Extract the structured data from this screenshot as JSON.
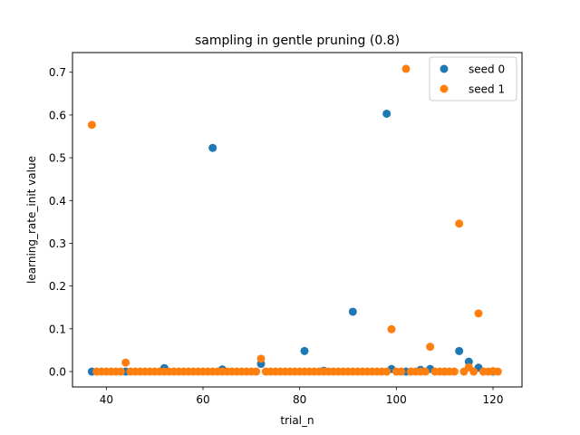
{
  "chart_data": {
    "type": "scatter",
    "title": "sampling in gentle pruning (0.8)",
    "xlabel": "trial_n",
    "ylabel": "learning_rate_init value",
    "xlim": [
      33,
      126
    ],
    "ylim": [
      -0.036,
      0.746
    ],
    "xticks": [
      40,
      60,
      80,
      100,
      120
    ],
    "yticks": [
      0.0,
      0.1,
      0.2,
      0.3,
      0.4,
      0.5,
      0.6,
      0.7
    ],
    "yticklabels": [
      "0.0",
      "0.1",
      "0.2",
      "0.3",
      "0.4",
      "0.5",
      "0.6",
      "0.7"
    ],
    "grid": false,
    "legend_position": "top-right",
    "series": [
      {
        "name": "seed 0",
        "color": "#1f77b4",
        "points": [
          [
            37,
            0.0
          ],
          [
            44,
            0.0
          ],
          [
            52,
            0.008
          ],
          [
            62,
            0.523
          ],
          [
            64,
            0.005
          ],
          [
            72,
            0.018
          ],
          [
            81,
            0.048
          ],
          [
            85,
            0.002
          ],
          [
            91,
            0.14
          ],
          [
            98,
            0.603
          ],
          [
            99,
            0.006
          ],
          [
            102,
            0.0
          ],
          [
            105,
            0.004
          ],
          [
            107,
            0.006
          ],
          [
            110,
            0.0
          ],
          [
            113,
            0.048
          ],
          [
            115,
            0.023
          ],
          [
            117,
            0.009
          ],
          [
            120,
            0.0
          ]
        ]
      },
      {
        "name": "seed 1",
        "color": "#ff7f0e",
        "points": [
          [
            37,
            0.577
          ],
          [
            38,
            0.0
          ],
          [
            39,
            0.0
          ],
          [
            40,
            0.0
          ],
          [
            41,
            0.0
          ],
          [
            42,
            0.0
          ],
          [
            43,
            0.0
          ],
          [
            44,
            0.021
          ],
          [
            45,
            0.0
          ],
          [
            46,
            0.0
          ],
          [
            47,
            0.0
          ],
          [
            48,
            0.0
          ],
          [
            49,
            0.0
          ],
          [
            50,
            0.0
          ],
          [
            51,
            0.0
          ],
          [
            52,
            0.0
          ],
          [
            53,
            0.0
          ],
          [
            54,
            0.0
          ],
          [
            55,
            0.0
          ],
          [
            56,
            0.0
          ],
          [
            57,
            0.0
          ],
          [
            58,
            0.0
          ],
          [
            59,
            0.0
          ],
          [
            60,
            0.0
          ],
          [
            61,
            0.0
          ],
          [
            62,
            0.0
          ],
          [
            63,
            0.0
          ],
          [
            64,
            0.0
          ],
          [
            65,
            0.0
          ],
          [
            66,
            0.0
          ],
          [
            67,
            0.0
          ],
          [
            68,
            0.0
          ],
          [
            69,
            0.0
          ],
          [
            70,
            0.0
          ],
          [
            71,
            0.0
          ],
          [
            72,
            0.03
          ],
          [
            73,
            0.0
          ],
          [
            74,
            0.0
          ],
          [
            75,
            0.0
          ],
          [
            76,
            0.0
          ],
          [
            77,
            0.0
          ],
          [
            78,
            0.0
          ],
          [
            79,
            0.0
          ],
          [
            80,
            0.0
          ],
          [
            81,
            0.0
          ],
          [
            82,
            0.0
          ],
          [
            83,
            0.0
          ],
          [
            84,
            0.0
          ],
          [
            85,
            0.0
          ],
          [
            86,
            0.0
          ],
          [
            87,
            0.0
          ],
          [
            88,
            0.0
          ],
          [
            89,
            0.0
          ],
          [
            90,
            0.0
          ],
          [
            91,
            0.0
          ],
          [
            92,
            0.0
          ],
          [
            93,
            0.0
          ],
          [
            94,
            0.0
          ],
          [
            95,
            0.0
          ],
          [
            96,
            0.0
          ],
          [
            97,
            0.0
          ],
          [
            98,
            0.0
          ],
          [
            99,
            0.099
          ],
          [
            100,
            0.0
          ],
          [
            101,
            0.0
          ],
          [
            102,
            0.708
          ],
          [
            103,
            0.0
          ],
          [
            104,
            0.0
          ],
          [
            105,
            0.0
          ],
          [
            106,
            0.0
          ],
          [
            107,
            0.058
          ],
          [
            108,
            0.0
          ],
          [
            109,
            0.0
          ],
          [
            110,
            0.0
          ],
          [
            111,
            0.0
          ],
          [
            112,
            0.0
          ],
          [
            113,
            0.346
          ],
          [
            114,
            0.0
          ],
          [
            115,
            0.01
          ],
          [
            116,
            0.0
          ],
          [
            117,
            0.136
          ],
          [
            118,
            0.0
          ],
          [
            119,
            0.0
          ],
          [
            120,
            0.001
          ],
          [
            121,
            0.0
          ]
        ]
      }
    ]
  }
}
